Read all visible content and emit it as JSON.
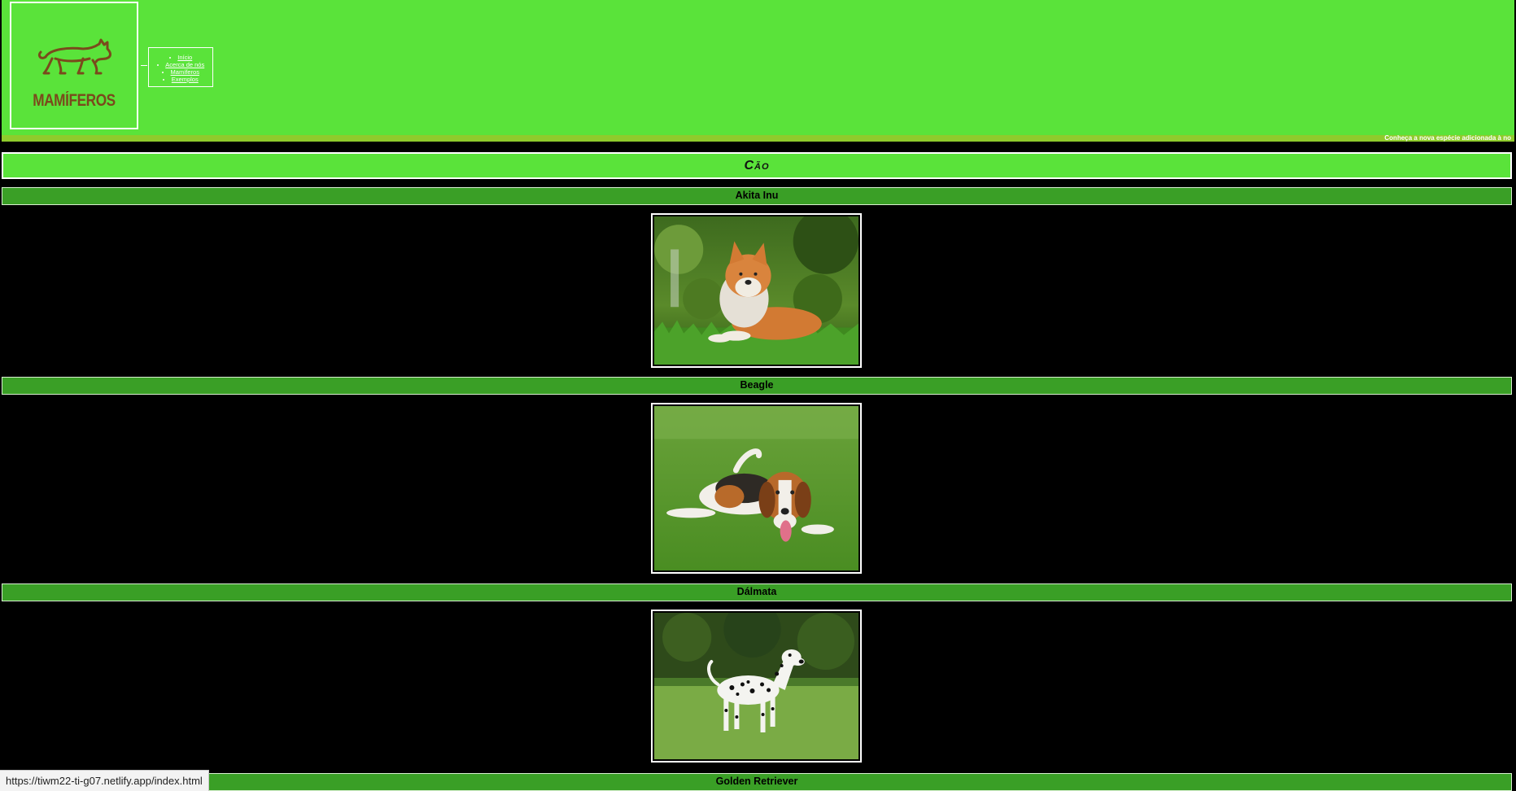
{
  "header": {
    "logo_text": "MAMÍFEROS",
    "nav": [
      "Início",
      "Acerca de nós",
      "Mamíferos",
      "Exemplos"
    ],
    "ticker": "Conheça a nova espécie adicionada à no"
  },
  "section": {
    "title": "Cão"
  },
  "breeds": [
    {
      "name": "Akita Inu",
      "image": "akita-photo"
    },
    {
      "name": "Beagle",
      "image": "beagle-photo"
    },
    {
      "name": "Dálmata",
      "image": "dalmatian-photo"
    },
    {
      "name": "Golden Retriever",
      "image": ""
    }
  ],
  "status_bar": {
    "url": "https://tiwm22-ti-g07.netlify.app/index.html"
  },
  "colors": {
    "header_green": "#5ae33a",
    "bar_green": "#3a9f26",
    "ticker_green": "#8fcb2c",
    "logo_brown": "#7a4a1c",
    "background": "#000000"
  }
}
